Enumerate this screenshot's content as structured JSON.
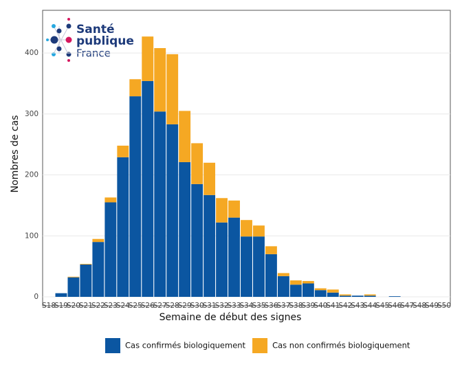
{
  "logo": {
    "line1": "Santé",
    "line2": "publique",
    "line3": "France"
  },
  "chart_data": {
    "type": "bar",
    "stacked": true,
    "x_label": "Semaine de début des signes",
    "y_label": "Nombres de cas",
    "categories": [
      "S18",
      "S19",
      "S20",
      "S21",
      "S22",
      "S23",
      "S24",
      "S25",
      "S26",
      "S27",
      "S28",
      "S29",
      "S30",
      "S31",
      "S32",
      "S33",
      "S34",
      "S35",
      "S36",
      "S37",
      "S38",
      "S39",
      "S40",
      "S41",
      "S42",
      "S43",
      "S44",
      "S45",
      "S46",
      "S47",
      "S48",
      "S49",
      "S50"
    ],
    "series": [
      {
        "name": "Cas confirmés biologiquement",
        "color": "#0b56a1",
        "values": [
          0,
          6,
          32,
          53,
          90,
          155,
          229,
          329,
          354,
          304,
          283,
          221,
          185,
          167,
          122,
          130,
          99,
          99,
          70,
          34,
          20,
          22,
          11,
          7,
          2,
          2,
          2,
          0,
          1,
          0,
          0,
          0,
          0
        ]
      },
      {
        "name": "Cas non confirmés biologiquement",
        "color": "#f5a823",
        "values": [
          0,
          0,
          1,
          1,
          5,
          8,
          19,
          28,
          73,
          104,
          115,
          84,
          67,
          53,
          40,
          28,
          27,
          18,
          13,
          5,
          7,
          4,
          3,
          5,
          2,
          0,
          2,
          0,
          0,
          0,
          0,
          0,
          0
        ]
      }
    ],
    "ylim": [
      0,
      470
    ],
    "yticks": [
      0,
      100,
      200,
      300,
      400
    ],
    "grid": true,
    "legend": "bottom"
  }
}
